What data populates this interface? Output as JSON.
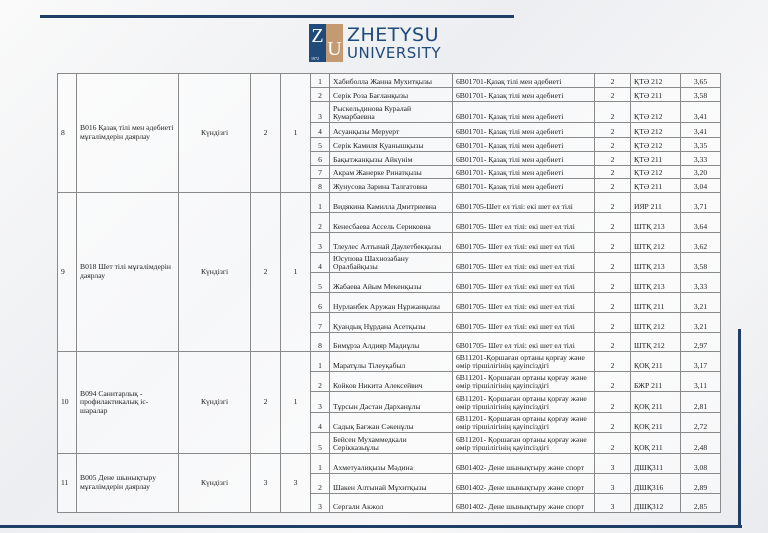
{
  "logo": {
    "mark_left": "Z",
    "mark_right": "U",
    "year": "1972",
    "line1": "ZHETYSU",
    "line2": "UNIVERSITY"
  },
  "groups": [
    {
      "num": "8",
      "specialty": "В016 Қазақ тілі мен әдебиеті мұғалімдерін даярлау",
      "form": "Күндізгі",
      "course": "2",
      "count": "1",
      "rows": [
        {
          "n": "1",
          "name": "Хабиболла Жанна Мухитқызы",
          "program": "6В01701-Қазақ тілі мен әдебиеті",
          "course": "2",
          "group": "ҚТӘ 212",
          "gpa": "3,65"
        },
        {
          "n": "2",
          "name": "Серік Роза Бағланқызы",
          "program": "6В01701- Қазақ тілі мен әдебиеті",
          "course": "2",
          "group": "ҚТӘ 211",
          "gpa": "3,58"
        },
        {
          "n": "3",
          "name": "Рыскельдинова Куралай Кумарбаевна",
          "program": "6В01701- Қазақ тілі мен әдебиеті",
          "course": "2",
          "group": "ҚТӘ 212",
          "gpa": "3,41"
        },
        {
          "n": "4",
          "name": "Асуанқызы Меруерт",
          "program": "6В01701- Қазақ тілі мен әдебиеті",
          "course": "2",
          "group": "ҚТӘ 212",
          "gpa": "3,41"
        },
        {
          "n": "5",
          "name": "Серік Камиля Қуанышқызы",
          "program": "6В01701- Қазақ тілі мен әдебиеті",
          "course": "2",
          "group": "ҚТӘ 212",
          "gpa": "3,35"
        },
        {
          "n": "6",
          "name": "Бақытжанқызы Айкүнім",
          "program": "6В01701- Қазақ тілі мен әдебиеті",
          "course": "2",
          "group": "ҚТӘ 211",
          "gpa": "3,33"
        },
        {
          "n": "7",
          "name": "Акрам Жанерке Ринатқызы",
          "program": "6В01701- Қазақ тілі мен әдебиеті",
          "course": "2",
          "group": "ҚТӘ 212",
          "gpa": "3,20"
        },
        {
          "n": "8",
          "name": "Жунусова Зарина Талгатовна",
          "program": "6В01701- Қазақ тілі мен әдебиеті",
          "course": "2",
          "group": "ҚТӘ 211",
          "gpa": "3,04"
        }
      ]
    },
    {
      "num": "9",
      "specialty": "В018 Шет тілі мұғалімдерін даярлау",
      "form": "Күндізгі",
      "course": "2",
      "count": "1",
      "rows": [
        {
          "n": "1",
          "name": "Видякина Камилла Дмитриевна",
          "program": "6В01705-Шет ел тілі: екі шет ел тілі",
          "course": "2",
          "group": "ИЯР 211",
          "gpa": "3,71"
        },
        {
          "n": "2",
          "name": "Кенесбаева Ассель Сериковна",
          "program": "6В01705- Шет ел тілі: екі шет ел тілі",
          "course": "2",
          "group": "ШТҚ 213",
          "gpa": "3,64"
        },
        {
          "n": "3",
          "name": "Тлеулес Алтынай Даулетбекқызы",
          "program": "6В01705- Шет ел тілі: екі шет ел тілі",
          "course": "2",
          "group": "ШТҚ 212",
          "gpa": "3,62"
        },
        {
          "n": "4",
          "name": "Юсупова Шахнозабану Оралбайқызы",
          "program": "6В01705- Шет ел тілі: екі шет ел тілі",
          "course": "2",
          "group": "ШТҚ 213",
          "gpa": "3,58"
        },
        {
          "n": "5",
          "name": "Жабаева Айым Мекенқызы",
          "program": "6В01705- Шет ел тілі: екі шет ел тілі",
          "course": "2",
          "group": "ШТҚ 213",
          "gpa": "3,33"
        },
        {
          "n": "6",
          "name": "Нурланбек Аружан Нұржанқызы",
          "program": "6В01705- Шет ел тілі: екі шет ел тілі",
          "course": "2",
          "group": "ШТҚ 211",
          "gpa": "3,21"
        },
        {
          "n": "7",
          "name": "Қуандық Нұрдана Асетқызы",
          "program": "6В01705- Шет ел тілі: екі шет ел тілі",
          "course": "2",
          "group": "ШТҚ 212",
          "gpa": "3,21"
        },
        {
          "n": "8",
          "name": "Бимұрза Алдияр Мадиұлы",
          "program": "6В01705- Шет ел тілі: екі шет ел тілі",
          "course": "2",
          "group": "ШТҚ 212",
          "gpa": "2,97"
        }
      ]
    },
    {
      "num": "10",
      "specialty": "В094 Санитарлық - профилактикалық іс-шаралар",
      "form": "Күндізгі",
      "course": "2",
      "count": "1",
      "rows": [
        {
          "n": "1",
          "name": "Маратұлы Тілеуқабыл",
          "program": "6В11201-Қоршаған ортаны қорғау және өмір тіршілігінің қауіпсіздігі",
          "course": "2",
          "group": "ҚОҚ 211",
          "gpa": "3,17"
        },
        {
          "n": "2",
          "name": "Койков Никита Алексейвич",
          "program": "6В11201- Қоршаған ортаны қорғау және өмір тіршілігінің қауіпсіздігі",
          "course": "2",
          "group": "БЖР 211",
          "gpa": "3,11"
        },
        {
          "n": "3",
          "name": "Тұрсын Дастан Дарханұлы",
          "program": "6В11201- Қоршаған ортаны қорғау және өмір тіршілігінің қауіпсіздігі",
          "course": "2",
          "group": "ҚОҚ 211",
          "gpa": "2,81"
        },
        {
          "n": "4",
          "name": "Садық Бағжан Сәкенұлы",
          "program": "6В11201- Қоршаған ортаны қорғау және өмір тіршілігінің қауіпсіздігі",
          "course": "2",
          "group": "ҚОҚ 211",
          "gpa": "2,72"
        },
        {
          "n": "5",
          "name": "Бейсен Мухаммедкали Серікказыұлы",
          "program": "6В11201- Қоршаған ортаны қорғау және өмір тіршілігінің қауіпсіздігі",
          "course": "2",
          "group": "ҚОҚ 211",
          "gpa": "2,48"
        }
      ]
    },
    {
      "num": "11",
      "specialty": "В005 Дене шынықтыру мұғалімдерін даярлау",
      "form": "Күндізгі",
      "course": "3",
      "count": "3",
      "rows": [
        {
          "n": "1",
          "name": "Ахметуалиқызы Мәдина",
          "program": "6В01402- Дене шынықтыру және спорт",
          "course": "3",
          "group": "ДШҚ311",
          "gpa": "3,08"
        },
        {
          "n": "2",
          "name": "Шакен Алтынай Мұхитқызы",
          "program": "6В01402- Дене шынықтыру және спорт",
          "course": "3",
          "group": "ДШҚ316",
          "gpa": "2,89"
        },
        {
          "n": "3",
          "name": "Сергали Акжол",
          "program": "6В01402- Дене шынықтыру және спорт",
          "course": "3",
          "group": "ДШҚ312",
          "gpa": "2,85"
        }
      ]
    }
  ]
}
